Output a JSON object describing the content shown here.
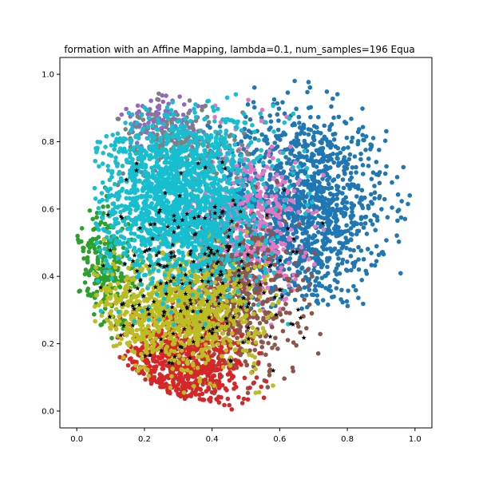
{
  "chart_data": {
    "type": "scatter",
    "title": "formation with an Affine Mapping, lambda=0.1, num_samples=196 Equa",
    "xlabel": "",
    "ylabel": "",
    "xlim": [
      -0.05,
      1.05
    ],
    "ylim": [
      -0.05,
      1.05
    ],
    "xticks": [
      "0.0",
      "0.2",
      "0.4",
      "0.6",
      "0.8",
      "1.0"
    ],
    "xtick_values": [
      0.0,
      0.2,
      0.4,
      0.6,
      0.8,
      1.0
    ],
    "yticks": [
      "0.0",
      "0.2",
      "0.4",
      "0.6",
      "0.8",
      "1.0"
    ],
    "ytick_values": [
      0.0,
      0.2,
      0.4,
      0.6,
      0.8,
      1.0
    ],
    "grid": false,
    "legend": "none",
    "series": [
      {
        "color": "#1f77b4",
        "marker": "circle",
        "approx_count": 1400,
        "center": [
          0.66,
          0.6
        ],
        "spread": [
          0.13,
          0.15
        ],
        "range": [
          0.38,
          1.0,
          0.3,
          1.0
        ]
      },
      {
        "color": "#e377c2",
        "marker": "circle",
        "approx_count": 500,
        "center": [
          0.5,
          0.55
        ],
        "spread": [
          0.08,
          0.13
        ],
        "range": [
          0.05,
          0.75,
          0.25,
          0.95
        ]
      },
      {
        "color": "#8c564b",
        "marker": "circle",
        "approx_count": 600,
        "center": [
          0.46,
          0.33
        ],
        "spread": [
          0.1,
          0.12
        ],
        "range": [
          0.08,
          0.72,
          0.05,
          0.9
        ]
      },
      {
        "color": "#d62728",
        "marker": "circle",
        "approx_count": 700,
        "center": [
          0.3,
          0.13
        ],
        "spread": [
          0.1,
          0.08
        ],
        "range": [
          0.1,
          0.65,
          0.0,
          0.4
        ]
      },
      {
        "color": "#2ca02c",
        "marker": "circle",
        "approx_count": 250,
        "center": [
          0.09,
          0.42
        ],
        "spread": [
          0.04,
          0.09
        ],
        "range": [
          0.0,
          0.25,
          0.15,
          0.7
        ]
      },
      {
        "color": "#9467bd",
        "marker": "circle",
        "approx_count": 120,
        "center": [
          0.25,
          0.85
        ],
        "spread": [
          0.06,
          0.04
        ],
        "range": [
          0.1,
          0.4,
          0.7,
          0.95
        ]
      },
      {
        "color": "#7f7f7f",
        "marker": "circle",
        "approx_count": 200,
        "center": [
          0.3,
          0.78
        ],
        "spread": [
          0.1,
          0.06
        ],
        "range": [
          0.1,
          0.55,
          0.6,
          0.95
        ]
      },
      {
        "color": "#bcbd22",
        "marker": "circle",
        "approx_count": 1000,
        "center": [
          0.3,
          0.3
        ],
        "spread": [
          0.12,
          0.09
        ],
        "range": [
          0.05,
          0.75,
          0.05,
          0.55
        ]
      },
      {
        "color": "#17becf",
        "marker": "circle",
        "approx_count": 1800,
        "center": [
          0.3,
          0.63
        ],
        "spread": [
          0.12,
          0.13
        ],
        "range": [
          0.05,
          0.7,
          0.25,
          0.95
        ]
      },
      {
        "color": "#000000",
        "marker": "star",
        "approx_count": 196,
        "center": [
          0.35,
          0.42
        ],
        "spread": [
          0.15,
          0.16
        ],
        "range": [
          0.05,
          0.95,
          0.12,
          0.75
        ]
      }
    ]
  }
}
